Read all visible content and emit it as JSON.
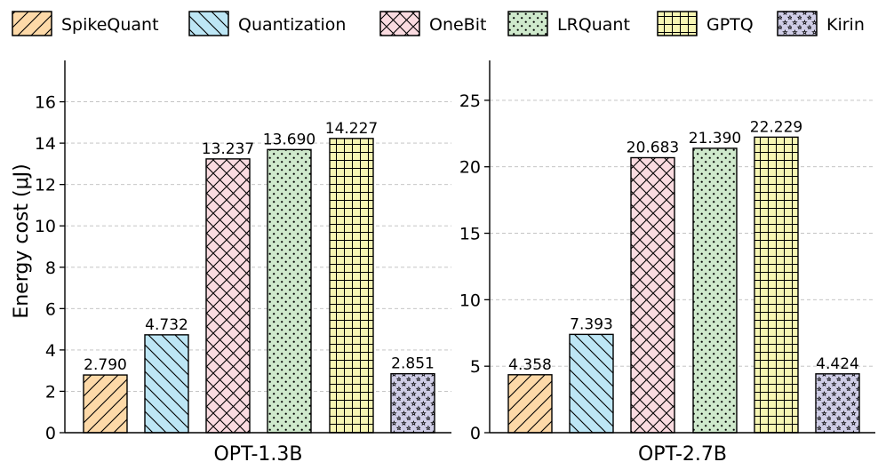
{
  "legend": [
    {
      "label": "SpikeQuant",
      "color": "#fdd9a8",
      "pattern": "hatch-fwd"
    },
    {
      "label": "Quantization",
      "color": "#bde6f5",
      "pattern": "hatch-back"
    },
    {
      "label": "OneBit",
      "color": "#fadbe0",
      "pattern": "hatch-cross"
    },
    {
      "label": "LRQuant",
      "color": "#cfe9cc",
      "pattern": "dots"
    },
    {
      "label": "GPTQ",
      "color": "#f7f6b3",
      "pattern": "grid"
    },
    {
      "label": "Kirin",
      "color": "#cfcde6",
      "pattern": "stars"
    }
  ],
  "chart_data": [
    {
      "type": "bar",
      "xlabel": "OPT-1.3B",
      "ylabel": "Energy cost (μJ)",
      "ylim": [
        0,
        18
      ],
      "yticks": [
        0,
        2,
        4,
        6,
        8,
        10,
        12,
        14,
        16
      ],
      "ytick_labels": [
        "0",
        "2",
        "4",
        "6",
        "8",
        "10",
        "12",
        "14",
        "16"
      ],
      "grid": "horizontal dashed",
      "categories": [
        "SpikeQuant",
        "Quantization",
        "OneBit",
        "LRQuant",
        "GPTQ",
        "Kirin"
      ],
      "values": [
        2.79,
        4.732,
        13.237,
        13.69,
        14.227,
        2.851
      ],
      "value_labels": [
        "2.790",
        "4.732",
        "13.237",
        "13.690",
        "14.227",
        "2.851"
      ]
    },
    {
      "type": "bar",
      "xlabel": "OPT-2.7B",
      "ylabel": "",
      "ylim": [
        0,
        28
      ],
      "yticks": [
        0,
        5,
        10,
        15,
        20,
        25
      ],
      "ytick_labels": [
        "0",
        "5",
        "10",
        "15",
        "20",
        "25"
      ],
      "grid": "horizontal dashed",
      "categories": [
        "SpikeQuant",
        "Quantization",
        "OneBit",
        "LRQuant",
        "GPTQ",
        "Kirin"
      ],
      "values": [
        4.358,
        7.393,
        20.683,
        21.39,
        22.229,
        4.424
      ],
      "value_labels": [
        "4.358",
        "7.393",
        "20.683",
        "21.390",
        "22.229",
        "4.424"
      ]
    }
  ]
}
